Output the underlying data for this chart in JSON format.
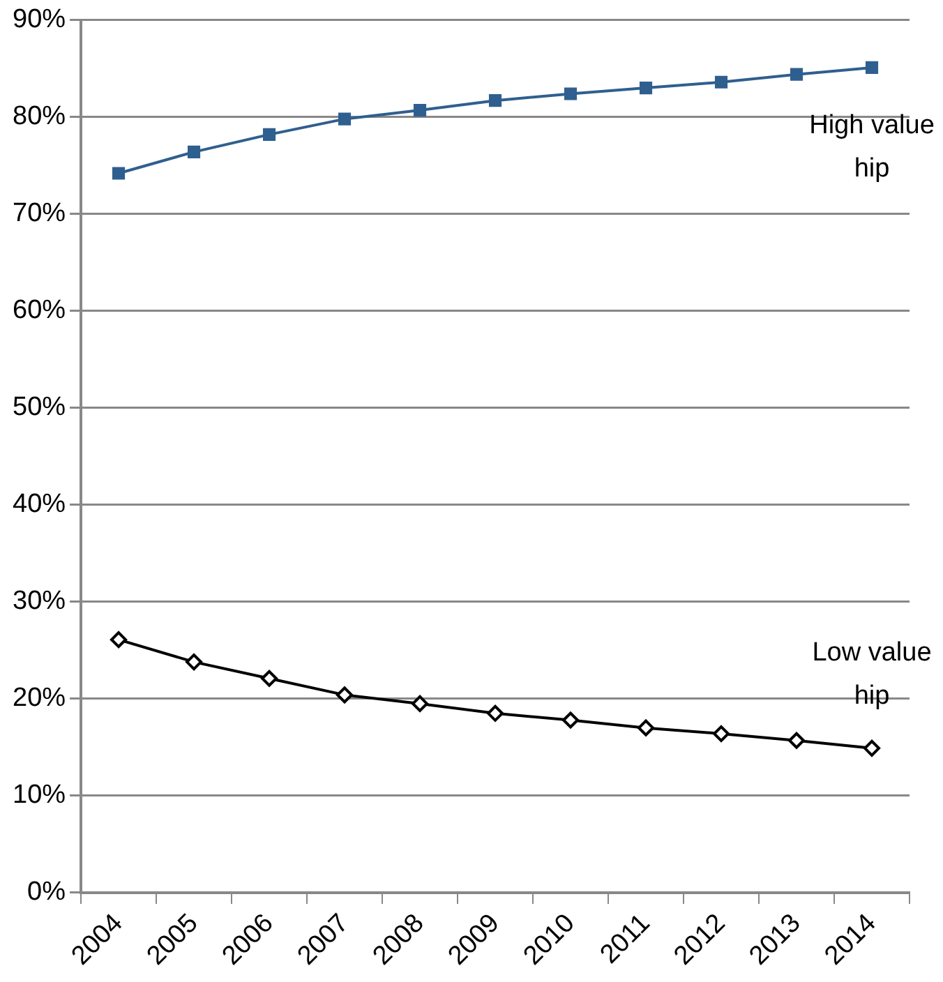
{
  "chart_data": {
    "type": "line",
    "categories": [
      "2004",
      "2005",
      "2006",
      "2007",
      "2008",
      "2009",
      "2010",
      "2011",
      "2012",
      "2013",
      "2014"
    ],
    "series": [
      {
        "name": "High value hip",
        "color": "#2f5f8f",
        "marker": "square",
        "values": [
          74.2,
          76.4,
          78.2,
          79.8,
          80.7,
          81.7,
          82.4,
          83.0,
          83.6,
          84.4,
          85.1
        ]
      },
      {
        "name": "Low value hip",
        "color": "#000000",
        "marker": "diamond",
        "values": [
          26.1,
          23.8,
          22.1,
          20.4,
          19.5,
          18.5,
          17.8,
          17.0,
          16.4,
          15.7,
          14.9
        ]
      }
    ],
    "ylim": [
      0,
      90
    ],
    "yticks": [
      {
        "value": 0,
        "label": "0%"
      },
      {
        "value": 10,
        "label": "10%"
      },
      {
        "value": 20,
        "label": "20%"
      },
      {
        "value": 30,
        "label": "30%"
      },
      {
        "value": 40,
        "label": "40%"
      },
      {
        "value": 50,
        "label": "50%"
      },
      {
        "value": 60,
        "label": "60%"
      },
      {
        "value": 70,
        "label": "70%"
      },
      {
        "value": 80,
        "label": "80%"
      },
      {
        "value": 90,
        "label": "90%"
      }
    ],
    "grid": "y",
    "legend": false,
    "line_style": "solid"
  }
}
